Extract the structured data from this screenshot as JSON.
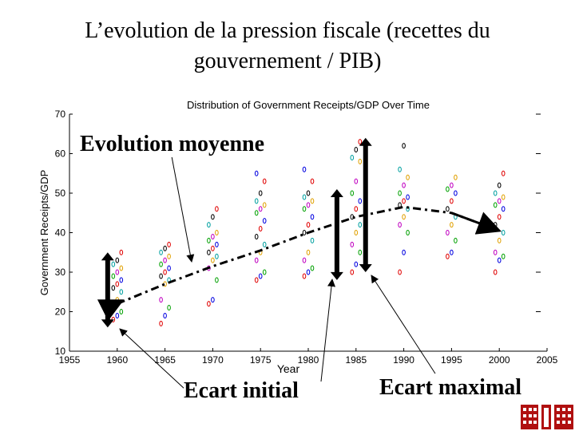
{
  "slide": {
    "title_line1": "L’evolution de la pression fiscale (recettes du",
    "title_line2": "gouvernement / PIB)"
  },
  "annotations": {
    "mean": "Evolution moyenne",
    "initial_spread": "Ecart initial",
    "max_spread": "Ecart maximal"
  },
  "chart_data": {
    "type": "scatter",
    "title": "Distribution of Government Receipts/GDP Over Time",
    "xlabel": "Year",
    "ylabel": "Government Receipts/GDP",
    "xlim": [
      1955,
      2005
    ],
    "ylim": [
      10,
      70
    ],
    "xticks": [
      1955,
      1960,
      1965,
      1970,
      1975,
      1980,
      1985,
      1990,
      1995,
      2000,
      2005
    ],
    "yticks": [
      10,
      20,
      30,
      40,
      50,
      60,
      70
    ],
    "grid": false,
    "marker": "circle",
    "colors": [
      "#e00000",
      "#0000e0",
      "#00a000",
      "#c000c0",
      "#e0a000",
      "#00a0a0",
      "#000000"
    ],
    "series": [
      {
        "year": 1960,
        "values": [
          18,
          19,
          20,
          22,
          23,
          25,
          26,
          27,
          28,
          29,
          30,
          31,
          32,
          33,
          35
        ]
      },
      {
        "year": 1965,
        "values": [
          17,
          19,
          21,
          23,
          27,
          28,
          29,
          30,
          31,
          32,
          33,
          34,
          35,
          36,
          37
        ]
      },
      {
        "year": 1970,
        "values": [
          22,
          23,
          28,
          31,
          33,
          34,
          35,
          36,
          37,
          38,
          39,
          40,
          42,
          44,
          46
        ]
      },
      {
        "year": 1975,
        "values": [
          28,
          29,
          30,
          33,
          35,
          37,
          39,
          41,
          43,
          45,
          46,
          47,
          48,
          50,
          53,
          55
        ]
      },
      {
        "year": 1980,
        "values": [
          29,
          30,
          31,
          33,
          35,
          38,
          40,
          42,
          44,
          46,
          47,
          48,
          49,
          50,
          53,
          56
        ]
      },
      {
        "year": 1985,
        "values": [
          30,
          32,
          35,
          37,
          40,
          42,
          44,
          46,
          48,
          50,
          53,
          58,
          59,
          61,
          63
        ]
      },
      {
        "year": 1990,
        "values": [
          30,
          35,
          40,
          42,
          44,
          46,
          47,
          48,
          49,
          50,
          52,
          54,
          56,
          62
        ]
      },
      {
        "year": 1995,
        "values": [
          34,
          35,
          38,
          40,
          42,
          44,
          46,
          48,
          50,
          51,
          52,
          54
        ]
      },
      {
        "year": 2000,
        "values": [
          30,
          33,
          34,
          35,
          38,
          40,
          42,
          44,
          46,
          47,
          48,
          49,
          50,
          52,
          55
        ]
      }
    ],
    "mean_trend": {
      "x": [
        1960,
        1965,
        1970,
        1975,
        1980,
        1985,
        1990,
        1995,
        2000
      ],
      "y": [
        22,
        27,
        31.5,
        35.5,
        40,
        44,
        46.5,
        45,
        40.5
      ]
    },
    "initial_spread": {
      "year": 1959,
      "range": [
        16,
        35
      ]
    },
    "max_spread": {
      "year": 1986,
      "range": [
        30,
        64
      ]
    },
    "mid_spread": {
      "year": 1983,
      "range": [
        28,
        51
      ]
    }
  }
}
